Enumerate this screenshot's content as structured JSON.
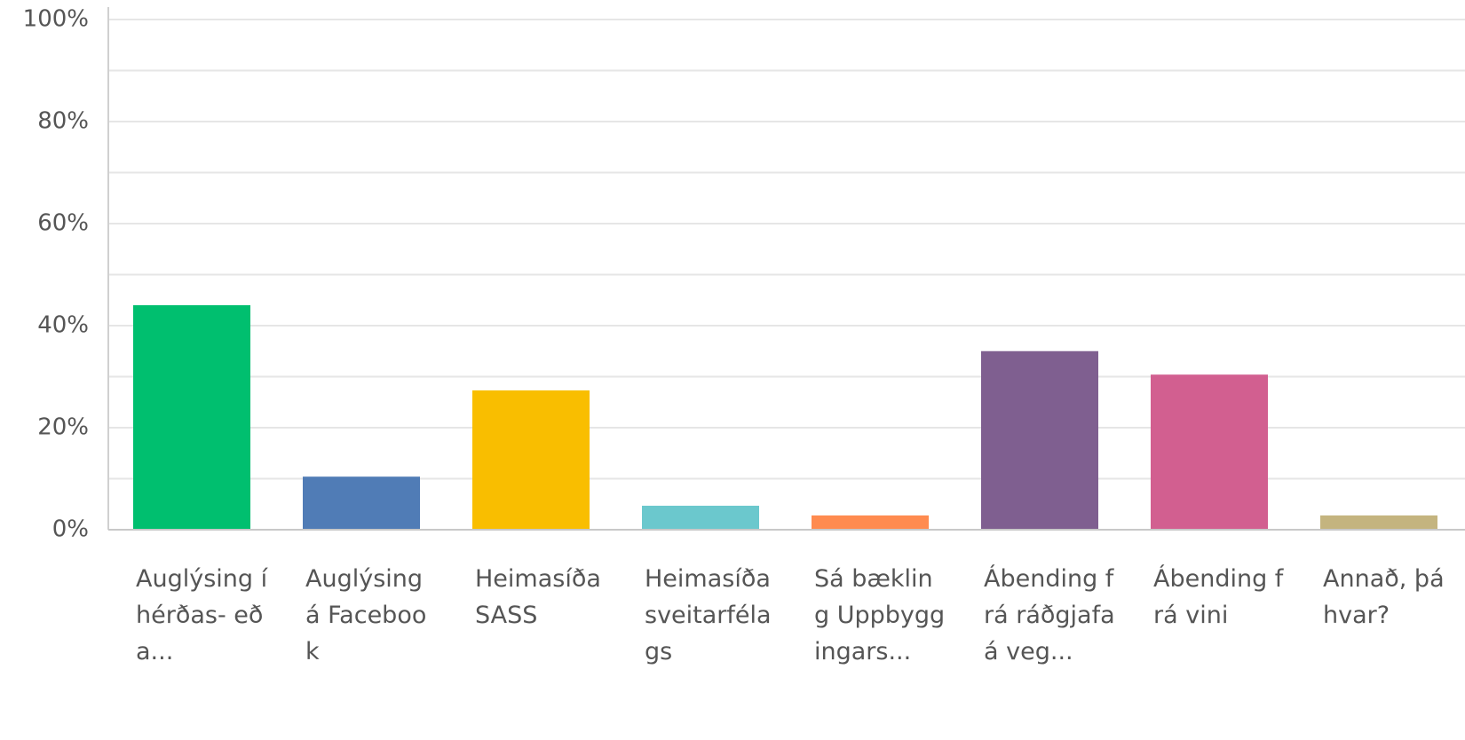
{
  "chart_data": {
    "type": "bar",
    "categories": [
      "Auglýsing í hérðas- eða...",
      "Auglýsing á Facebook",
      "Heimasíða SASS",
      "Heimasíða sveitarfélags",
      "Sá bækling Uppbyggingars...",
      "Ábending frá ráðgjafa á veg...",
      "Ábending frá vini",
      "Annað, þá hvar?"
    ],
    "values": [
      44,
      10.4,
      27.3,
      4.7,
      2.8,
      35,
      30.4,
      2.8
    ],
    "colors": [
      "#00bf6f",
      "#507cb6",
      "#f9be00",
      "#6bc8cd",
      "#ff8b4f",
      "#7f5f90",
      "#d25f90",
      "#c4b47f"
    ],
    "ylim": [
      0,
      100
    ],
    "yticks": [
      {
        "value": 0,
        "label": "0%"
      },
      {
        "value": 20,
        "label": "20%"
      },
      {
        "value": 40,
        "label": "40%"
      },
      {
        "value": 60,
        "label": "60%"
      },
      {
        "value": 80,
        "label": "80%"
      },
      {
        "value": 100,
        "label": "100%"
      }
    ],
    "minor_yticks": [
      10,
      30,
      50,
      70,
      90
    ],
    "grid": true
  }
}
